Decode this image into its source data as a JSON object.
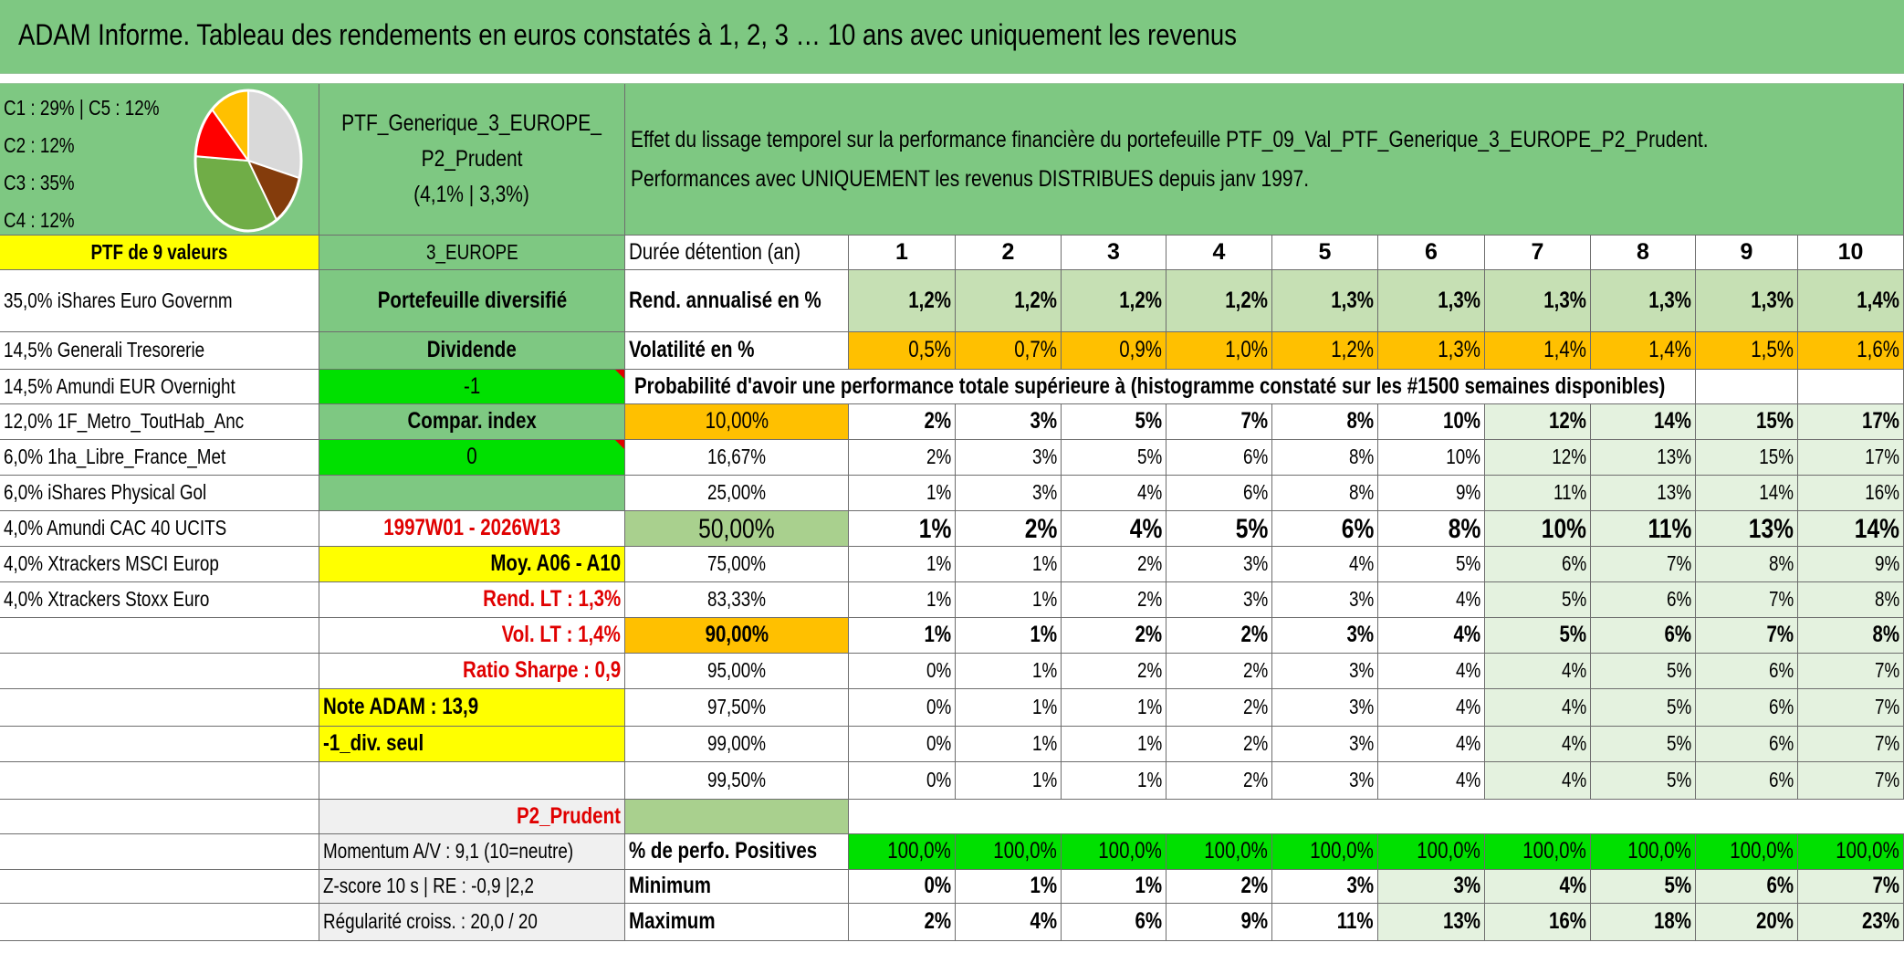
{
  "title": "ADAM Informe. Tableau des rendements en euros constatés à 1, 2, 3 … 10 ans avec uniquement les revenus",
  "allocation": {
    "c1_c5": "C1 : 29% | C5 : 12%",
    "c2": "C2 : 12%",
    "c3": "C3 : 35%",
    "c4": "C4 : 12%"
  },
  "pie_chart": {
    "slices": [
      {
        "label": "C1",
        "percent": 29,
        "color": "#d9d9d9"
      },
      {
        "label": "C2",
        "percent": 12,
        "color": "#843c0c"
      },
      {
        "label": "C3",
        "percent": 35,
        "color": "#70ad47"
      },
      {
        "label": "C4",
        "percent": 12,
        "color": "#ff0000"
      },
      {
        "label": "C5",
        "percent": 12,
        "color": "#ffc000"
      }
    ]
  },
  "portfolio": {
    "name_line1": "PTF_Generique_3_EUROPE_",
    "name_line2": "P2_Prudent",
    "name_line3": "(4,1% | 3,3%)",
    "description_line1": "Effet du lissage temporel sur la performance financière du portefeuille PTF_09_Val_PTF_Generique_3_EUROPE_P2_Prudent.",
    "description_line2": "Performances avec UNIQUEMENT les revenus DISTRIBUES depuis janv 1997."
  },
  "holdings_header": "PTF de 9 valeurs",
  "holdings": [
    "35,0% iShares Euro Governm",
    "14,5% Generali Tresorerie",
    "14,5% Amundi EUR Overnight",
    "12,0% 1F_Metro_ToutHab_Anc",
    "6,0% 1ha_Libre_France_Met",
    "6,0% iShares Physical Gol",
    "4,0% Amundi CAC 40 UCITS",
    "4,0% Xtrackers MSCI Europ",
    "4,0% Xtrackers Stoxx Euro"
  ],
  "middle": {
    "zone": "3_EUROPE",
    "diversified": "Portefeuille diversifié",
    "dividend_label": "Dividende",
    "dividend_value": "-1",
    "compar_label": "Compar. index",
    "compar_value": "0",
    "period": "1997W01 - 2026W13",
    "moy": "Moy. A06 - A10",
    "rend_lt": "Rend. LT : 1,3%",
    "vol_lt": "Vol. LT : 1,4%",
    "sharpe": "Ratio Sharpe : 0,9",
    "note": "Note ADAM : 13,9",
    "div_seul": "-1_div. seul",
    "profile": "P2_Prudent",
    "momentum": "Momentum A/V : 9,1 (10=neutre)",
    "zscore": "Z-score 10 s | RE : -0,9 |2,2",
    "regularite": "Régularité croiss. : 20,0 / 20"
  },
  "table": {
    "duration_label": "Durée détention (an)",
    "years": [
      "1",
      "2",
      "3",
      "4",
      "5",
      "6",
      "7",
      "8",
      "9",
      "10"
    ],
    "rend_label": "Rend. annualisé en %",
    "rend": [
      "1,2%",
      "1,2%",
      "1,2%",
      "1,2%",
      "1,3%",
      "1,3%",
      "1,3%",
      "1,3%",
      "1,3%",
      "1,4%"
    ],
    "vol_label": "Volatilité en %",
    "vol": [
      "0,5%",
      "0,7%",
      "0,9%",
      "1,0%",
      "1,2%",
      "1,3%",
      "1,4%",
      "1,4%",
      "1,5%",
      "1,6%"
    ],
    "prob_header": "Probabilité d'avoir une performance totale supérieure à (histogramme constaté sur les #1500 semaines disponibles)",
    "quantiles": [
      {
        "label": "10,00%",
        "values": [
          "2%",
          "3%",
          "5%",
          "7%",
          "8%",
          "10%",
          "12%",
          "14%",
          "15%",
          "17%"
        ]
      },
      {
        "label": "16,67%",
        "values": [
          "2%",
          "3%",
          "5%",
          "6%",
          "8%",
          "10%",
          "12%",
          "13%",
          "15%",
          "17%"
        ]
      },
      {
        "label": "25,00%",
        "values": [
          "1%",
          "3%",
          "4%",
          "6%",
          "8%",
          "9%",
          "11%",
          "13%",
          "14%",
          "16%"
        ]
      },
      {
        "label": "50,00%",
        "values": [
          "1%",
          "2%",
          "4%",
          "5%",
          "6%",
          "8%",
          "10%",
          "11%",
          "13%",
          "14%"
        ]
      },
      {
        "label": "75,00%",
        "values": [
          "1%",
          "1%",
          "2%",
          "3%",
          "4%",
          "5%",
          "6%",
          "7%",
          "8%",
          "9%"
        ]
      },
      {
        "label": "83,33%",
        "values": [
          "1%",
          "1%",
          "2%",
          "3%",
          "3%",
          "4%",
          "5%",
          "6%",
          "7%",
          "8%"
        ]
      },
      {
        "label": "90,00%",
        "values": [
          "1%",
          "1%",
          "2%",
          "2%",
          "3%",
          "4%",
          "5%",
          "6%",
          "7%",
          "8%"
        ]
      },
      {
        "label": "95,00%",
        "values": [
          "0%",
          "1%",
          "2%",
          "2%",
          "3%",
          "4%",
          "4%",
          "5%",
          "6%",
          "7%"
        ]
      },
      {
        "label": "97,50%",
        "values": [
          "0%",
          "1%",
          "1%",
          "2%",
          "3%",
          "4%",
          "4%",
          "5%",
          "6%",
          "7%"
        ]
      },
      {
        "label": "99,00%",
        "values": [
          "0%",
          "1%",
          "1%",
          "2%",
          "3%",
          "4%",
          "4%",
          "5%",
          "6%",
          "7%"
        ]
      },
      {
        "label": "99,50%",
        "values": [
          "0%",
          "1%",
          "1%",
          "2%",
          "3%",
          "4%",
          "4%",
          "5%",
          "6%",
          "7%"
        ]
      }
    ],
    "positive_label": "% de perfo. Positives",
    "positive": [
      "100,0%",
      "100,0%",
      "100,0%",
      "100,0%",
      "100,0%",
      "100,0%",
      "100,0%",
      "100,0%",
      "100,0%",
      "100,0%"
    ],
    "min_label": "Minimum",
    "min": [
      "0%",
      "1%",
      "1%",
      "2%",
      "3%",
      "3%",
      "4%",
      "5%",
      "6%",
      "7%"
    ],
    "max_label": "Maximum",
    "max": [
      "2%",
      "4%",
      "6%",
      "9%",
      "11%",
      "13%",
      "16%",
      "18%",
      "20%",
      "23%"
    ]
  }
}
